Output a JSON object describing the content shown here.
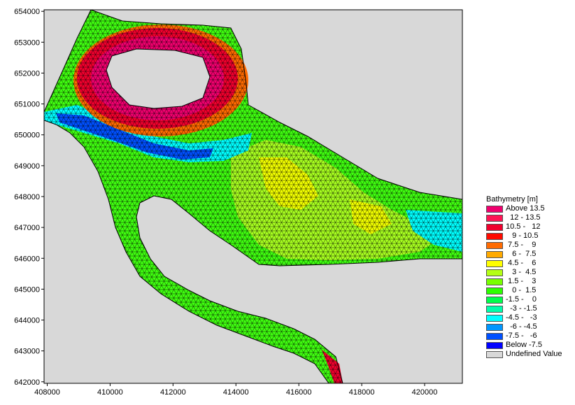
{
  "chart_data": {
    "type": "heatmap",
    "x_ticks": [
      "408000",
      "410000",
      "412000",
      "414000",
      "416000",
      "418000",
      "420000"
    ],
    "y_ticks": [
      "654000",
      "653000",
      "652000",
      "651000",
      "650000",
      "649000",
      "648000",
      "647000",
      "646000",
      "645000",
      "644000",
      "643000",
      "642000"
    ],
    "xlim": [
      407900,
      421200
    ],
    "ylim": [
      641950,
      654050
    ],
    "legend_title": "Bathymetry [m]",
    "legend": [
      {
        "label": "Above 13.5",
        "color": "#f0006e"
      },
      {
        "label": "  12 - 13.5",
        "color": "#ff1455"
      },
      {
        "label": "10.5 -   12",
        "color": "#f0002d"
      },
      {
        "label": "   9 - 10.5",
        "color": "#ff0a00"
      },
      {
        "label": " 7.5 -    9",
        "color": "#ff6a00"
      },
      {
        "label": "   6 -  7.5",
        "color": "#ffaa00"
      },
      {
        "label": " 4.5 -    6",
        "color": "#ffff00"
      },
      {
        "label": "   3 -  4.5",
        "color": "#b4ff14"
      },
      {
        "label": " 1.5 -    3",
        "color": "#78ff00"
      },
      {
        "label": "   0 -  1.5",
        "color": "#2dff00"
      },
      {
        "label": "-1.5 -    0",
        "color": "#00ff4b"
      },
      {
        "label": "  -3 - -1.5",
        "color": "#00ffaa"
      },
      {
        "label": "-4.5 -   -3",
        "color": "#00ffff"
      },
      {
        "label": "  -6 - -4.5",
        "color": "#0096ff"
      },
      {
        "label": "-7.5 -   -6",
        "color": "#0050ff"
      },
      {
        "label": "Below -7.5",
        "color": "#0000ff"
      },
      {
        "label": "Undefined Value",
        "color": "#d8d8d8"
      }
    ]
  }
}
